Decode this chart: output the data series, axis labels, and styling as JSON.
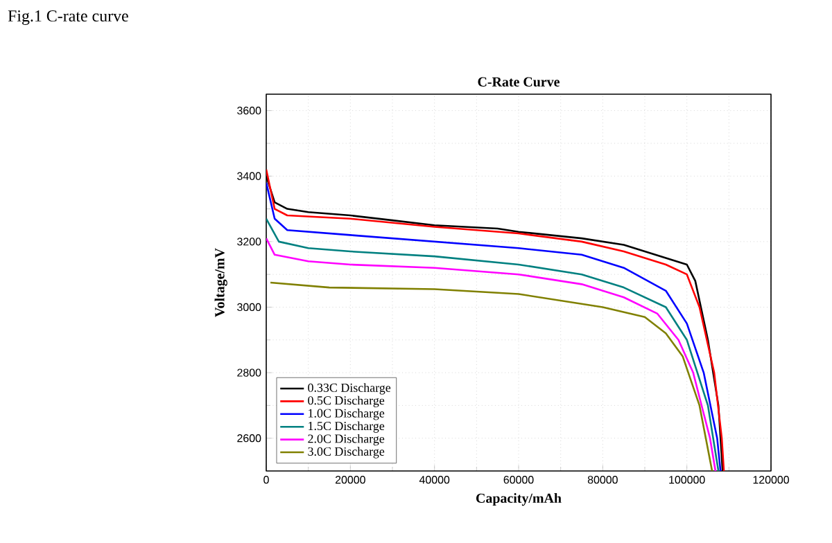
{
  "chart_data": {
    "type": "line",
    "title": "C-Rate Curve",
    "annotations": [
      "Fig.1 C-rate curve"
    ],
    "xlabel": "Capacity/mAh",
    "ylabel": "Voltage/mV",
    "xlim": [
      0,
      120000
    ],
    "ylim": [
      2500,
      3650
    ],
    "xticks": [
      0,
      20000,
      40000,
      60000,
      80000,
      100000,
      120000
    ],
    "yticks": [
      2600,
      2800,
      3000,
      3200,
      3400,
      3600
    ],
    "grid": true,
    "legend": "bottom left",
    "line_style": "solid",
    "marker": "none",
    "series": [
      {
        "name": "0.33C Discharge",
        "color": "#000000",
        "x": [
          0,
          2000,
          5000,
          10000,
          20000,
          30000,
          40000,
          55000,
          60000,
          75000,
          85000,
          95000,
          100000,
          102000,
          105000,
          107500,
          108500
        ],
        "values": [
          3400,
          3320,
          3300,
          3290,
          3280,
          3265,
          3250,
          3240,
          3230,
          3210,
          3190,
          3150,
          3130,
          3080,
          2900,
          2700,
          2500
        ]
      },
      {
        "name": "0.5C Discharge",
        "color": "#ff0000",
        "x": [
          0,
          2000,
          5000,
          20000,
          40000,
          60000,
          75000,
          85000,
          95000,
          100000,
          103000,
          106500,
          108300,
          108800
        ],
        "values": [
          3420,
          3300,
          3280,
          3270,
          3245,
          3225,
          3200,
          3170,
          3130,
          3100,
          3000,
          2800,
          2600,
          2500
        ]
      },
      {
        "name": "1.0C Discharge",
        "color": "#0000ff",
        "x": [
          0,
          2000,
          5000,
          20000,
          40000,
          60000,
          75000,
          85000,
          95000,
          100000,
          104000,
          107200,
          108000
        ],
        "values": [
          3380,
          3270,
          3235,
          3220,
          3200,
          3180,
          3160,
          3120,
          3050,
          2950,
          2800,
          2600,
          2500
        ]
      },
      {
        "name": "1.5C Discharge",
        "color": "#008080",
        "x": [
          0,
          3000,
          10000,
          20000,
          40000,
          60000,
          75000,
          85000,
          95000,
          100000,
          105000,
          107500
        ],
        "values": [
          3270,
          3200,
          3180,
          3170,
          3155,
          3130,
          3100,
          3060,
          3000,
          2900,
          2700,
          2500
        ]
      },
      {
        "name": "2.0C Discharge",
        "color": "#ff00ff",
        "x": [
          0,
          2000,
          10000,
          20000,
          40000,
          60000,
          75000,
          85000,
          93000,
          98000,
          101500,
          105500,
          106800
        ],
        "values": [
          3210,
          3160,
          3140,
          3130,
          3120,
          3100,
          3070,
          3030,
          2980,
          2900,
          2800,
          2600,
          2500
        ]
      },
      {
        "name": "3.0C Discharge",
        "color": "#808000",
        "x": [
          1000,
          15000,
          40000,
          60000,
          80000,
          90000,
          95000,
          99000,
          103000,
          106000
        ],
        "values": [
          3075,
          3060,
          3055,
          3040,
          3000,
          2970,
          2920,
          2850,
          2700,
          2500
        ]
      }
    ]
  }
}
